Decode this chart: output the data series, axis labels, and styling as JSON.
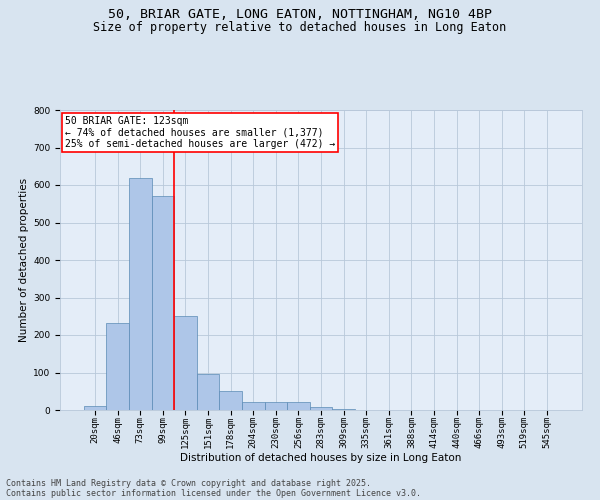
{
  "title_line1": "50, BRIAR GATE, LONG EATON, NOTTINGHAM, NG10 4BP",
  "title_line2": "Size of property relative to detached houses in Long Eaton",
  "xlabel": "Distribution of detached houses by size in Long Eaton",
  "ylabel": "Number of detached properties",
  "bar_labels": [
    "20sqm",
    "46sqm",
    "73sqm",
    "99sqm",
    "125sqm",
    "151sqm",
    "178sqm",
    "204sqm",
    "230sqm",
    "256sqm",
    "283sqm",
    "309sqm",
    "335sqm",
    "361sqm",
    "388sqm",
    "414sqm",
    "440sqm",
    "466sqm",
    "493sqm",
    "519sqm",
    "545sqm"
  ],
  "bar_values": [
    10,
    232,
    618,
    570,
    250,
    97,
    51,
    21,
    21,
    22,
    8,
    4,
    0,
    0,
    0,
    0,
    0,
    0,
    0,
    0,
    0
  ],
  "bar_color": "#aec6e8",
  "bar_edge_color": "#5a8ab5",
  "vline_color": "red",
  "vline_x": 3.5,
  "annotation_text": "50 BRIAR GATE: 123sqm\n← 74% of detached houses are smaller (1,377)\n25% of semi-detached houses are larger (472) →",
  "annotation_box_color": "white",
  "annotation_box_edge_color": "red",
  "ylim": [
    0,
    800
  ],
  "yticks": [
    0,
    100,
    200,
    300,
    400,
    500,
    600,
    700,
    800
  ],
  "grid_color": "#b8c8da",
  "background_color": "#d8e4f0",
  "plot_bg_color": "#e4edf8",
  "footer_line1": "Contains HM Land Registry data © Crown copyright and database right 2025.",
  "footer_line2": "Contains public sector information licensed under the Open Government Licence v3.0.",
  "title_fontsize": 9.5,
  "subtitle_fontsize": 8.5,
  "axis_label_fontsize": 7.5,
  "tick_fontsize": 6.5,
  "annotation_fontsize": 7,
  "footer_fontsize": 6
}
